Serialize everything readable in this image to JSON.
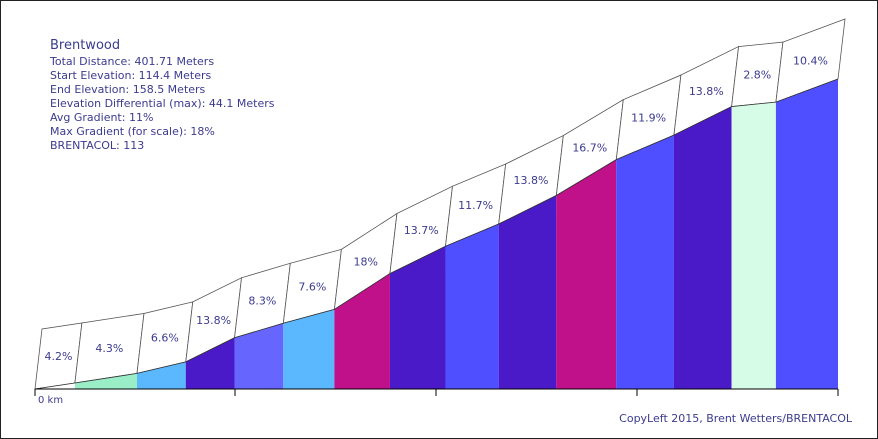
{
  "info": {
    "title": "Brentwood",
    "lines": [
      "Total Distance: 401.71 Meters",
      "Start Elevation: 114.4 Meters",
      "End Elevation: 158.5 Meters",
      "Elevation Differential (max): 44.1 Meters",
      "Avg Gradient: 11%",
      "Max Gradient (for scale): 18%",
      "BRENTACOL: 113"
    ]
  },
  "copyright": "CopyLeft 2015, Brent Wetters/BRENTACOL",
  "chart_data": {
    "type": "area",
    "title": "Brentwood",
    "x_axis_label": "0 km",
    "start_elevation": 114.4,
    "end_elevation": 158.5,
    "segments": [
      {
        "grade_label": "4.2%",
        "grade": 4.2,
        "length": 18.9,
        "color": "#ffffff"
      },
      {
        "grade_label": "4.3%",
        "grade": 4.3,
        "length": 29.4,
        "color": "#99eec8"
      },
      {
        "grade_label": "6.6%",
        "grade": 6.6,
        "length": 23.1,
        "color": "#5bb8ff"
      },
      {
        "grade_label": "13.8%",
        "grade": 13.8,
        "length": 23.1,
        "color": "#4a1ac8"
      },
      {
        "grade_label": "8.3%",
        "grade": 8.3,
        "length": 23.1,
        "color": "#6666ff"
      },
      {
        "grade_label": "7.6%",
        "grade": 7.6,
        "length": 24.2,
        "color": "#5bb8ff"
      },
      {
        "grade_label": "18%",
        "grade": 18.0,
        "length": 26.3,
        "color": "#c0108a"
      },
      {
        "grade_label": "13.7%",
        "grade": 13.7,
        "length": 26.3,
        "color": "#4a1ac8"
      },
      {
        "grade_label": "11.7%",
        "grade": 11.7,
        "length": 25.2,
        "color": "#4f4fff"
      },
      {
        "grade_label": "13.8%",
        "grade": 13.8,
        "length": 27.3,
        "color": "#4a1ac8"
      },
      {
        "grade_label": "16.7%",
        "grade": 16.7,
        "length": 28.4,
        "color": "#c0108a"
      },
      {
        "grade_label": "11.9%",
        "grade": 11.9,
        "length": 27.3,
        "color": "#4f4fff"
      },
      {
        "grade_label": "13.8%",
        "grade": 13.8,
        "length": 27.3,
        "color": "#4a1ac8"
      },
      {
        "grade_label": "2.8%",
        "grade": 2.8,
        "length": 21.0,
        "color": "#d6fbe6"
      },
      {
        "grade_label": "10.4%",
        "grade": 10.4,
        "length": 29.4,
        "color": "#4f4fff"
      }
    ]
  }
}
